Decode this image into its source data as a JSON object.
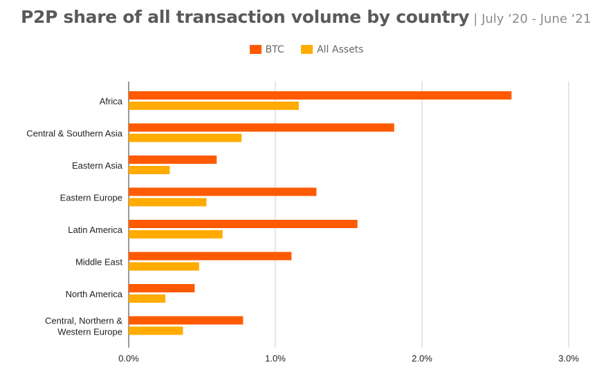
{
  "chart_data": {
    "type": "bar",
    "orientation": "horizontal",
    "title": "P2P share of all transaction volume by country",
    "subtitle": "| July ‘20 - June ‘21",
    "categories": [
      [
        "Africa"
      ],
      [
        "Central & Southern Asia"
      ],
      [
        "Eastern Asia"
      ],
      [
        "Eastern Europe"
      ],
      [
        "Latin America"
      ],
      [
        "Middle East"
      ],
      [
        "North America"
      ],
      [
        "Central, Northern &",
        "Western Europe"
      ]
    ],
    "series": [
      {
        "name": "BTC",
        "color": "#ff5a00",
        "values": [
          2.61,
          1.81,
          0.6,
          1.28,
          1.56,
          1.11,
          0.45,
          0.78
        ]
      },
      {
        "name": "All Assets",
        "color": "#ffab00",
        "values": [
          1.16,
          0.77,
          0.28,
          0.53,
          0.64,
          0.48,
          0.25,
          0.37
        ]
      }
    ],
    "xlim": [
      0,
      3
    ],
    "xticks": [
      0,
      1,
      2,
      3
    ],
    "xtick_labels": [
      "0.0%",
      "1.0%",
      "2.0%",
      "3.0%"
    ],
    "grid": true,
    "legend_position": "top-center"
  }
}
